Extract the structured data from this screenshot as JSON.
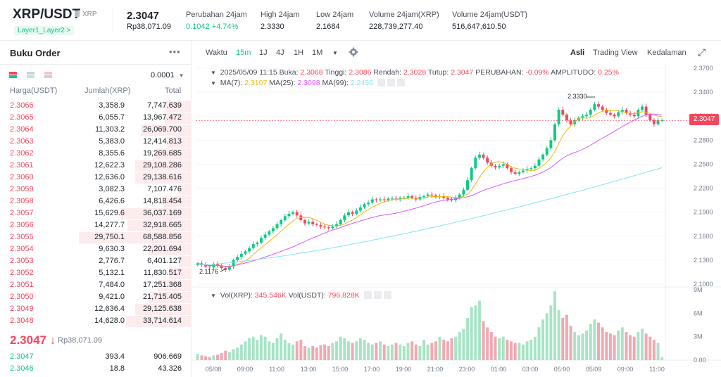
{
  "header": {
    "pair": "XRP/USDT",
    "base_chip": "XRP",
    "tag": "Layer1_Layer2 >",
    "last_price": "2.3047",
    "last_price_idr": "Rp38,071.09",
    "stats": [
      {
        "label": "Perubahan 24jam",
        "value": "0.1042 +4.74%",
        "positive": true
      },
      {
        "label": "High 24jam",
        "value": "2.3330",
        "positive": false
      },
      {
        "label": "Low 24jam",
        "value": "2.1684",
        "positive": false
      },
      {
        "label": "Volume 24jam(XRP)",
        "value": "228,739,277.40",
        "positive": false
      },
      {
        "label": "Volume 24jam(USDT)",
        "value": "516,647,610.50",
        "positive": false
      }
    ]
  },
  "orderbook": {
    "title": "Buku Order",
    "more": "•••",
    "step": "0.0001",
    "col_price": "Harga(USDT)",
    "col_amount": "Jumlah(XRP)",
    "col_total": "Total",
    "asks": [
      {
        "price": "2.3066",
        "amount": "3,358.9",
        "total": "7,747.639",
        "depth": 0.23
      },
      {
        "price": "2.3065",
        "amount": "6,055.7",
        "total": "13,967.472",
        "depth": 0.24
      },
      {
        "price": "2.3064",
        "amount": "11,303.2",
        "total": "26,069.700",
        "depth": 0.45
      },
      {
        "price": "2.3063",
        "amount": "5,383.0",
        "total": "12,414.813",
        "depth": 0.22
      },
      {
        "price": "2.3062",
        "amount": "8,355.6",
        "total": "19,269.685",
        "depth": 0.33
      },
      {
        "price": "2.3061",
        "amount": "12,622.3",
        "total": "29,108.286",
        "depth": 0.5
      },
      {
        "price": "2.3060",
        "amount": "12,636.0",
        "total": "29,138.616",
        "depth": 0.5
      },
      {
        "price": "2.3059",
        "amount": "3,082.3",
        "total": "7,107.476",
        "depth": 0.12
      },
      {
        "price": "2.3058",
        "amount": "6,426.6",
        "total": "14,818.454",
        "depth": 0.25
      },
      {
        "price": "2.3057",
        "amount": "15,629.6",
        "total": "36,037.169",
        "depth": 0.63
      },
      {
        "price": "2.3056",
        "amount": "14,277.7",
        "total": "32,918.665",
        "depth": 0.57
      },
      {
        "price": "2.3055",
        "amount": "29,750.1",
        "total": "68,588.856",
        "depth": 1.0
      },
      {
        "price": "2.3054",
        "amount": "9,630.3",
        "total": "22,201.694",
        "depth": 0.38
      },
      {
        "price": "2.3053",
        "amount": "2,776.7",
        "total": "6,401.127",
        "depth": 0.11
      },
      {
        "price": "2.3052",
        "amount": "5,132.1",
        "total": "11,830.517",
        "depth": 0.2
      },
      {
        "price": "2.3051",
        "amount": "7,484.0",
        "total": "17,251.368",
        "depth": 0.3
      },
      {
        "price": "2.3050",
        "amount": "9,421.0",
        "total": "21,715.405",
        "depth": 0.38
      },
      {
        "price": "2.3049",
        "amount": "12,636.4",
        "total": "29,125.638",
        "depth": 0.5
      },
      {
        "price": "2.3048",
        "amount": "14,628.0",
        "total": "33,714.614",
        "depth": 0.58
      }
    ],
    "last_price": "2.3047",
    "last_arrow": "↓",
    "last_price_idr": "Rp38,071.09",
    "bids": [
      {
        "price": "2.3047",
        "amount": "393.4",
        "total": "906.669",
        "depth": 0.0
      },
      {
        "price": "2.3046",
        "amount": "18.8",
        "total": "43.326",
        "depth": 0.0
      }
    ]
  },
  "toolbar": {
    "time_label": "Waktu",
    "intervals": [
      "15m",
      "1J",
      "4J",
      "1H",
      "1M"
    ],
    "active_interval": "15m",
    "views": [
      "Asli",
      "Trading View",
      "Kedalaman"
    ],
    "active_view": "Asli"
  },
  "chart_info": {
    "date": "2025/05/09 11:15",
    "open_label": "Buka:",
    "open": "2.3068",
    "high_label": "Tinggi:",
    "high": "2.3086",
    "low_label": "Rendah:",
    "low": "2.3028",
    "close_label": "Tutup:",
    "close": "2.3047",
    "change_label": "PERUBAHAN:",
    "change": "-0.09%",
    "amp_label": "AMPLITUDO:",
    "amp": "0.25%",
    "ma7_label": "MA(7):",
    "ma7": "2.3107",
    "ma25_label": "MA(25):",
    "ma25": "2.3098",
    "ma99_label": "MA(99):",
    "ma99": "2.2456",
    "vol_xrp_label": "Vol(XRP):",
    "vol_xrp": "345.546K",
    "vol_usdt_label": "Vol(USDT):",
    "vol_usdt": "796.828K",
    "current_price_tag": "2.3047",
    "high_marker": "2.3330",
    "low_marker": "2.1176"
  },
  "colors": {
    "up": "#0ecb81",
    "down": "#f6465d",
    "ma7": "#f0b90b",
    "ma25": "#e056fd",
    "ma99": "#82e5f8"
  },
  "chart_data": {
    "type": "candlestick",
    "price_axis_ticks": [
      "2.3700",
      "2.3400",
      "2.3100",
      "2.2800",
      "2.2500",
      "2.2200",
      "2.1900",
      "2.1600",
      "2.1300",
      "2.1000"
    ],
    "volume_axis_ticks": [
      "9M",
      "6M",
      "3M",
      "0.00"
    ],
    "time_ticks": [
      "05/08",
      "09:00",
      "11:00",
      "13:00",
      "15:00",
      "17:00",
      "19:00",
      "21:00",
      "23:00",
      "01:00",
      "03:00",
      "05:00",
      "05/09",
      "09:00",
      "11:00"
    ],
    "price_range": [
      2.1,
      2.37
    ],
    "volume_range": [
      0,
      9000000
    ],
    "interval": "15m",
    "candles_close_path": [
      2.126,
      2.124,
      2.122,
      2.121,
      2.125,
      2.123,
      2.12,
      2.118,
      2.122,
      2.13,
      2.134,
      2.138,
      2.141,
      2.145,
      2.15,
      2.152,
      2.158,
      2.162,
      2.166,
      2.17,
      2.175,
      2.18,
      2.185,
      2.188,
      2.19,
      2.186,
      2.18,
      2.176,
      2.178,
      2.175,
      2.174,
      2.172,
      2.171,
      2.17,
      2.172,
      2.175,
      2.18,
      2.186,
      2.19,
      2.188,
      2.192,
      2.196,
      2.2,
      2.202,
      2.206,
      2.205,
      2.206,
      2.205,
      2.207,
      2.207,
      2.206,
      2.208,
      2.208,
      2.21,
      2.208,
      2.206,
      2.209,
      2.21,
      2.212,
      2.211,
      2.209,
      2.21,
      2.208,
      2.206,
      2.205,
      2.208,
      2.212,
      2.218,
      2.23,
      2.245,
      2.258,
      2.262,
      2.258,
      2.252,
      2.248,
      2.246,
      2.248,
      2.25,
      2.245,
      2.24,
      2.238,
      2.24,
      2.242,
      2.244,
      2.245,
      2.248,
      2.256,
      2.262,
      2.27,
      2.28,
      2.3,
      2.318,
      2.312,
      2.305,
      2.3,
      2.305,
      2.308,
      2.31,
      2.312,
      2.318,
      2.325,
      2.322,
      2.318,
      2.314,
      2.312,
      2.31,
      2.315,
      2.318,
      2.314,
      2.312,
      2.31,
      2.318,
      2.322,
      2.312,
      2.305,
      2.3,
      2.305,
      2.305
    ],
    "volumes_path": [
      0.8,
      0.6,
      0.5,
      0.4,
      0.6,
      0.7,
      0.9,
      1.2,
      1.0,
      1.4,
      1.6,
      2.0,
      2.4,
      2.8,
      3.0,
      2.6,
      3.2,
      3.0,
      2.4,
      2.2,
      2.8,
      3.4,
      2.6,
      2.2,
      2.0,
      2.4,
      2.6,
      1.8,
      1.6,
      1.8,
      1.6,
      1.9,
      2.0,
      1.8,
      2.2,
      2.4,
      3.0,
      2.8,
      2.4,
      2.2,
      2.4,
      2.8,
      2.6,
      2.2,
      2.0,
      2.2,
      2.4,
      2.0,
      1.8,
      2.0,
      2.2,
      2.0,
      1.8,
      2.2,
      2.4,
      2.0,
      1.8,
      2.6,
      2.0,
      2.2,
      2.4,
      3.0,
      2.6,
      2.4,
      2.8,
      3.0,
      3.6,
      4.0,
      5.4,
      6.8,
      7.0,
      7.6,
      5.0,
      4.2,
      3.6,
      3.0,
      2.8,
      3.0,
      2.6,
      2.4,
      2.2,
      2.2,
      2.0,
      2.4,
      2.6,
      3.0,
      4.2,
      5.2,
      6.0,
      7.0,
      8.8,
      6.4,
      5.4,
      5.8,
      4.4,
      3.6,
      3.2,
      3.4,
      3.8,
      4.6,
      5.2,
      4.8,
      4.2,
      3.6,
      3.4,
      3.2,
      3.8,
      4.2,
      3.6,
      3.2,
      3.0,
      3.6,
      4.0,
      3.4,
      3.0,
      2.6,
      2.2,
      0.4
    ]
  }
}
